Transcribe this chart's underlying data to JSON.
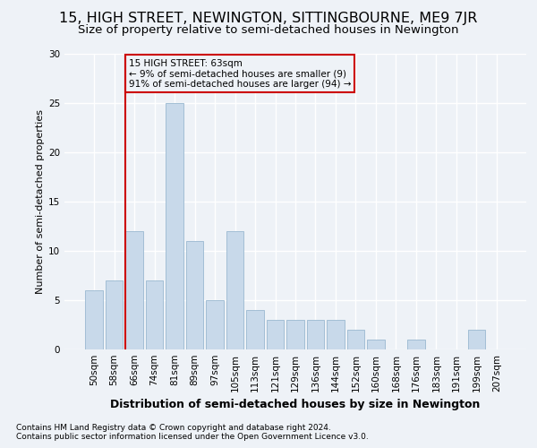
{
  "title": "15, HIGH STREET, NEWINGTON, SITTINGBOURNE, ME9 7JR",
  "subtitle": "Size of property relative to semi-detached houses in Newington",
  "xlabel": "Distribution of semi-detached houses by size in Newington",
  "ylabel": "Number of semi-detached properties",
  "categories": [
    "50sqm",
    "58sqm",
    "66sqm",
    "74sqm",
    "81sqm",
    "89sqm",
    "97sqm",
    "105sqm",
    "113sqm",
    "121sqm",
    "129sqm",
    "136sqm",
    "144sqm",
    "152sqm",
    "160sqm",
    "168sqm",
    "176sqm",
    "183sqm",
    "191sqm",
    "199sqm",
    "207sqm"
  ],
  "values": [
    6,
    7,
    12,
    7,
    25,
    11,
    5,
    12,
    4,
    3,
    3,
    3,
    3,
    2,
    1,
    0,
    1,
    0,
    0,
    2,
    0
  ],
  "bar_color": "#c8d9ea",
  "bar_edge_color": "#9ab8d0",
  "highlight_line_color": "#cc0000",
  "annotation_box_text": "15 HIGH STREET: 63sqm\n← 9% of semi-detached houses are smaller (9)\n91% of semi-detached houses are larger (94) →",
  "annotation_box_color": "#cc0000",
  "ylim": [
    0,
    30
  ],
  "yticks": [
    0,
    5,
    10,
    15,
    20,
    25,
    30
  ],
  "footnote1": "Contains HM Land Registry data © Crown copyright and database right 2024.",
  "footnote2": "Contains public sector information licensed under the Open Government Licence v3.0.",
  "bg_color": "#eef2f7",
  "grid_color": "#ffffff",
  "title_fontsize": 11.5,
  "subtitle_fontsize": 9.5,
  "xlabel_fontsize": 9,
  "ylabel_fontsize": 8,
  "footnote_fontsize": 6.5,
  "tick_fontsize": 7.5
}
